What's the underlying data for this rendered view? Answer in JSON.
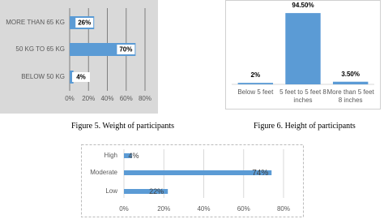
{
  "chart_data": [
    {
      "type": "bar",
      "horizontal": true,
      "categories": [
        "MORE THAN 65 KG",
        "50 KG TO 65 KG",
        "BELOW 50 KG"
      ],
      "values": [
        26,
        70,
        4
      ],
      "value_labels": [
        "26%",
        "70%",
        "4%"
      ],
      "color": "#5b9bd5",
      "xlim": [
        0,
        80
      ],
      "xticks": [
        {
          "value": 0,
          "label": "0%"
        },
        {
          "value": 20,
          "label": "20%"
        },
        {
          "value": 40,
          "label": "40%"
        },
        {
          "value": 60,
          "label": "60%"
        },
        {
          "value": 80,
          "label": "80%"
        }
      ],
      "grid": true
    },
    {
      "type": "bar",
      "horizontal": false,
      "categories": [
        "Below 5 feet",
        "5 feet to 5 feet 8 inches",
        "More than 5 feet 8 inches"
      ],
      "values": [
        2,
        94.5,
        3.5
      ],
      "value_labels": [
        "2%",
        "94.50%",
        "3.50%"
      ],
      "color": "#5b9bd5",
      "ylim": [
        0,
        100
      ],
      "grid": false
    },
    {
      "type": "bar",
      "horizontal": true,
      "categories": [
        "High",
        "Moderate",
        "Low"
      ],
      "values": [
        4,
        74,
        22
      ],
      "value_labels": [
        "4%",
        "74%",
        "22%"
      ],
      "color": "#5b9bd5",
      "xlim": [
        0,
        80
      ],
      "xticks": [
        {
          "value": 0,
          "label": "0%"
        },
        {
          "value": 20,
          "label": "20%"
        },
        {
          "value": 40,
          "label": "40%"
        },
        {
          "value": 60,
          "label": "60%"
        },
        {
          "value": 80,
          "label": "80%"
        }
      ],
      "grid": true
    }
  ],
  "captions": [
    "Figure 5. Weight of participants",
    "Figure 6. Height of participants"
  ]
}
